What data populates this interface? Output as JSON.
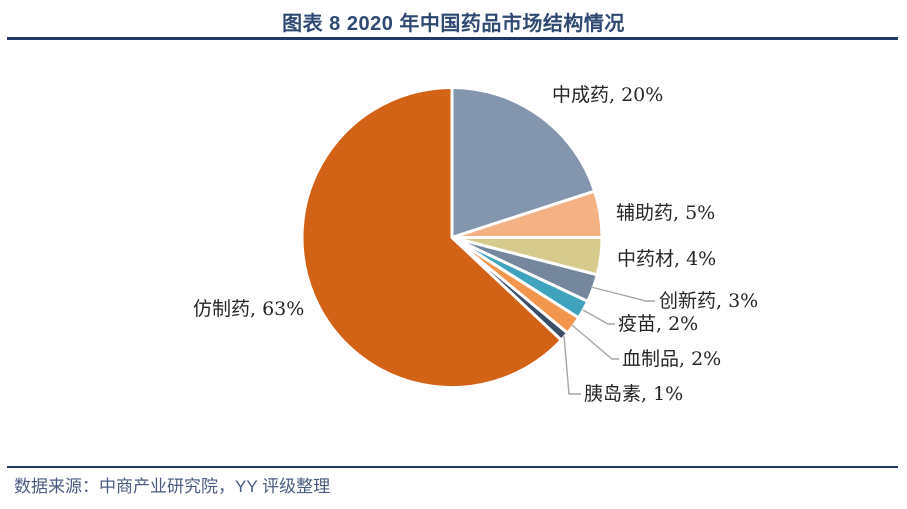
{
  "header": {
    "title": "图表 8 2020 年中国药品市场结构情况"
  },
  "footer": {
    "source": "数据来源：中商产业研究院，YY 评级整理"
  },
  "colors": {
    "accent_navy": "#1F3864",
    "title_text": "#2E4A72",
    "source_text": "#4A5C82",
    "leader_line": "#A6A6A6",
    "label_text": "#262626",
    "background": "#FFFFFF",
    "slice_border": "#FFFFFF"
  },
  "chart_data": {
    "type": "pie",
    "title": "图表 8 2020 年中国药品市场结构情况",
    "unit": "%",
    "start_angle_deg": 0,
    "direction": "clockwise",
    "legend": "none",
    "source": "数据来源：中商产业研究院，YY 评级整理",
    "slices": [
      {
        "id": "chinese-patent-medicine",
        "name": "中成药",
        "value": 20,
        "label": "中成药, 20%",
        "color": "#8496AE"
      },
      {
        "id": "auxiliary-drugs",
        "name": "辅助药",
        "value": 5,
        "label": "辅助药, 5%",
        "color": "#F4B183"
      },
      {
        "id": "chinese-herbal-materials",
        "name": "中药材",
        "value": 4,
        "label": "中药材, 4%",
        "color": "#D6CB8D"
      },
      {
        "id": "innovative-drugs",
        "name": "创新药",
        "value": 3,
        "label": "创新药, 3%",
        "color": "#75879D"
      },
      {
        "id": "vaccines",
        "name": "疫苗",
        "value": 2,
        "label": "疫苗, 2%",
        "color": "#3FA3BD"
      },
      {
        "id": "blood-products",
        "name": "血制品",
        "value": 2,
        "label": "血制品, 2%",
        "color": "#F2964D"
      },
      {
        "id": "insulin",
        "name": "胰岛素",
        "value": 1,
        "label": "胰岛素, 1%",
        "color": "#3A4E66"
      },
      {
        "id": "generic-drugs",
        "name": "仿制药",
        "value": 63,
        "label": "仿制药, 63%",
        "color": "#D26316"
      }
    ]
  }
}
